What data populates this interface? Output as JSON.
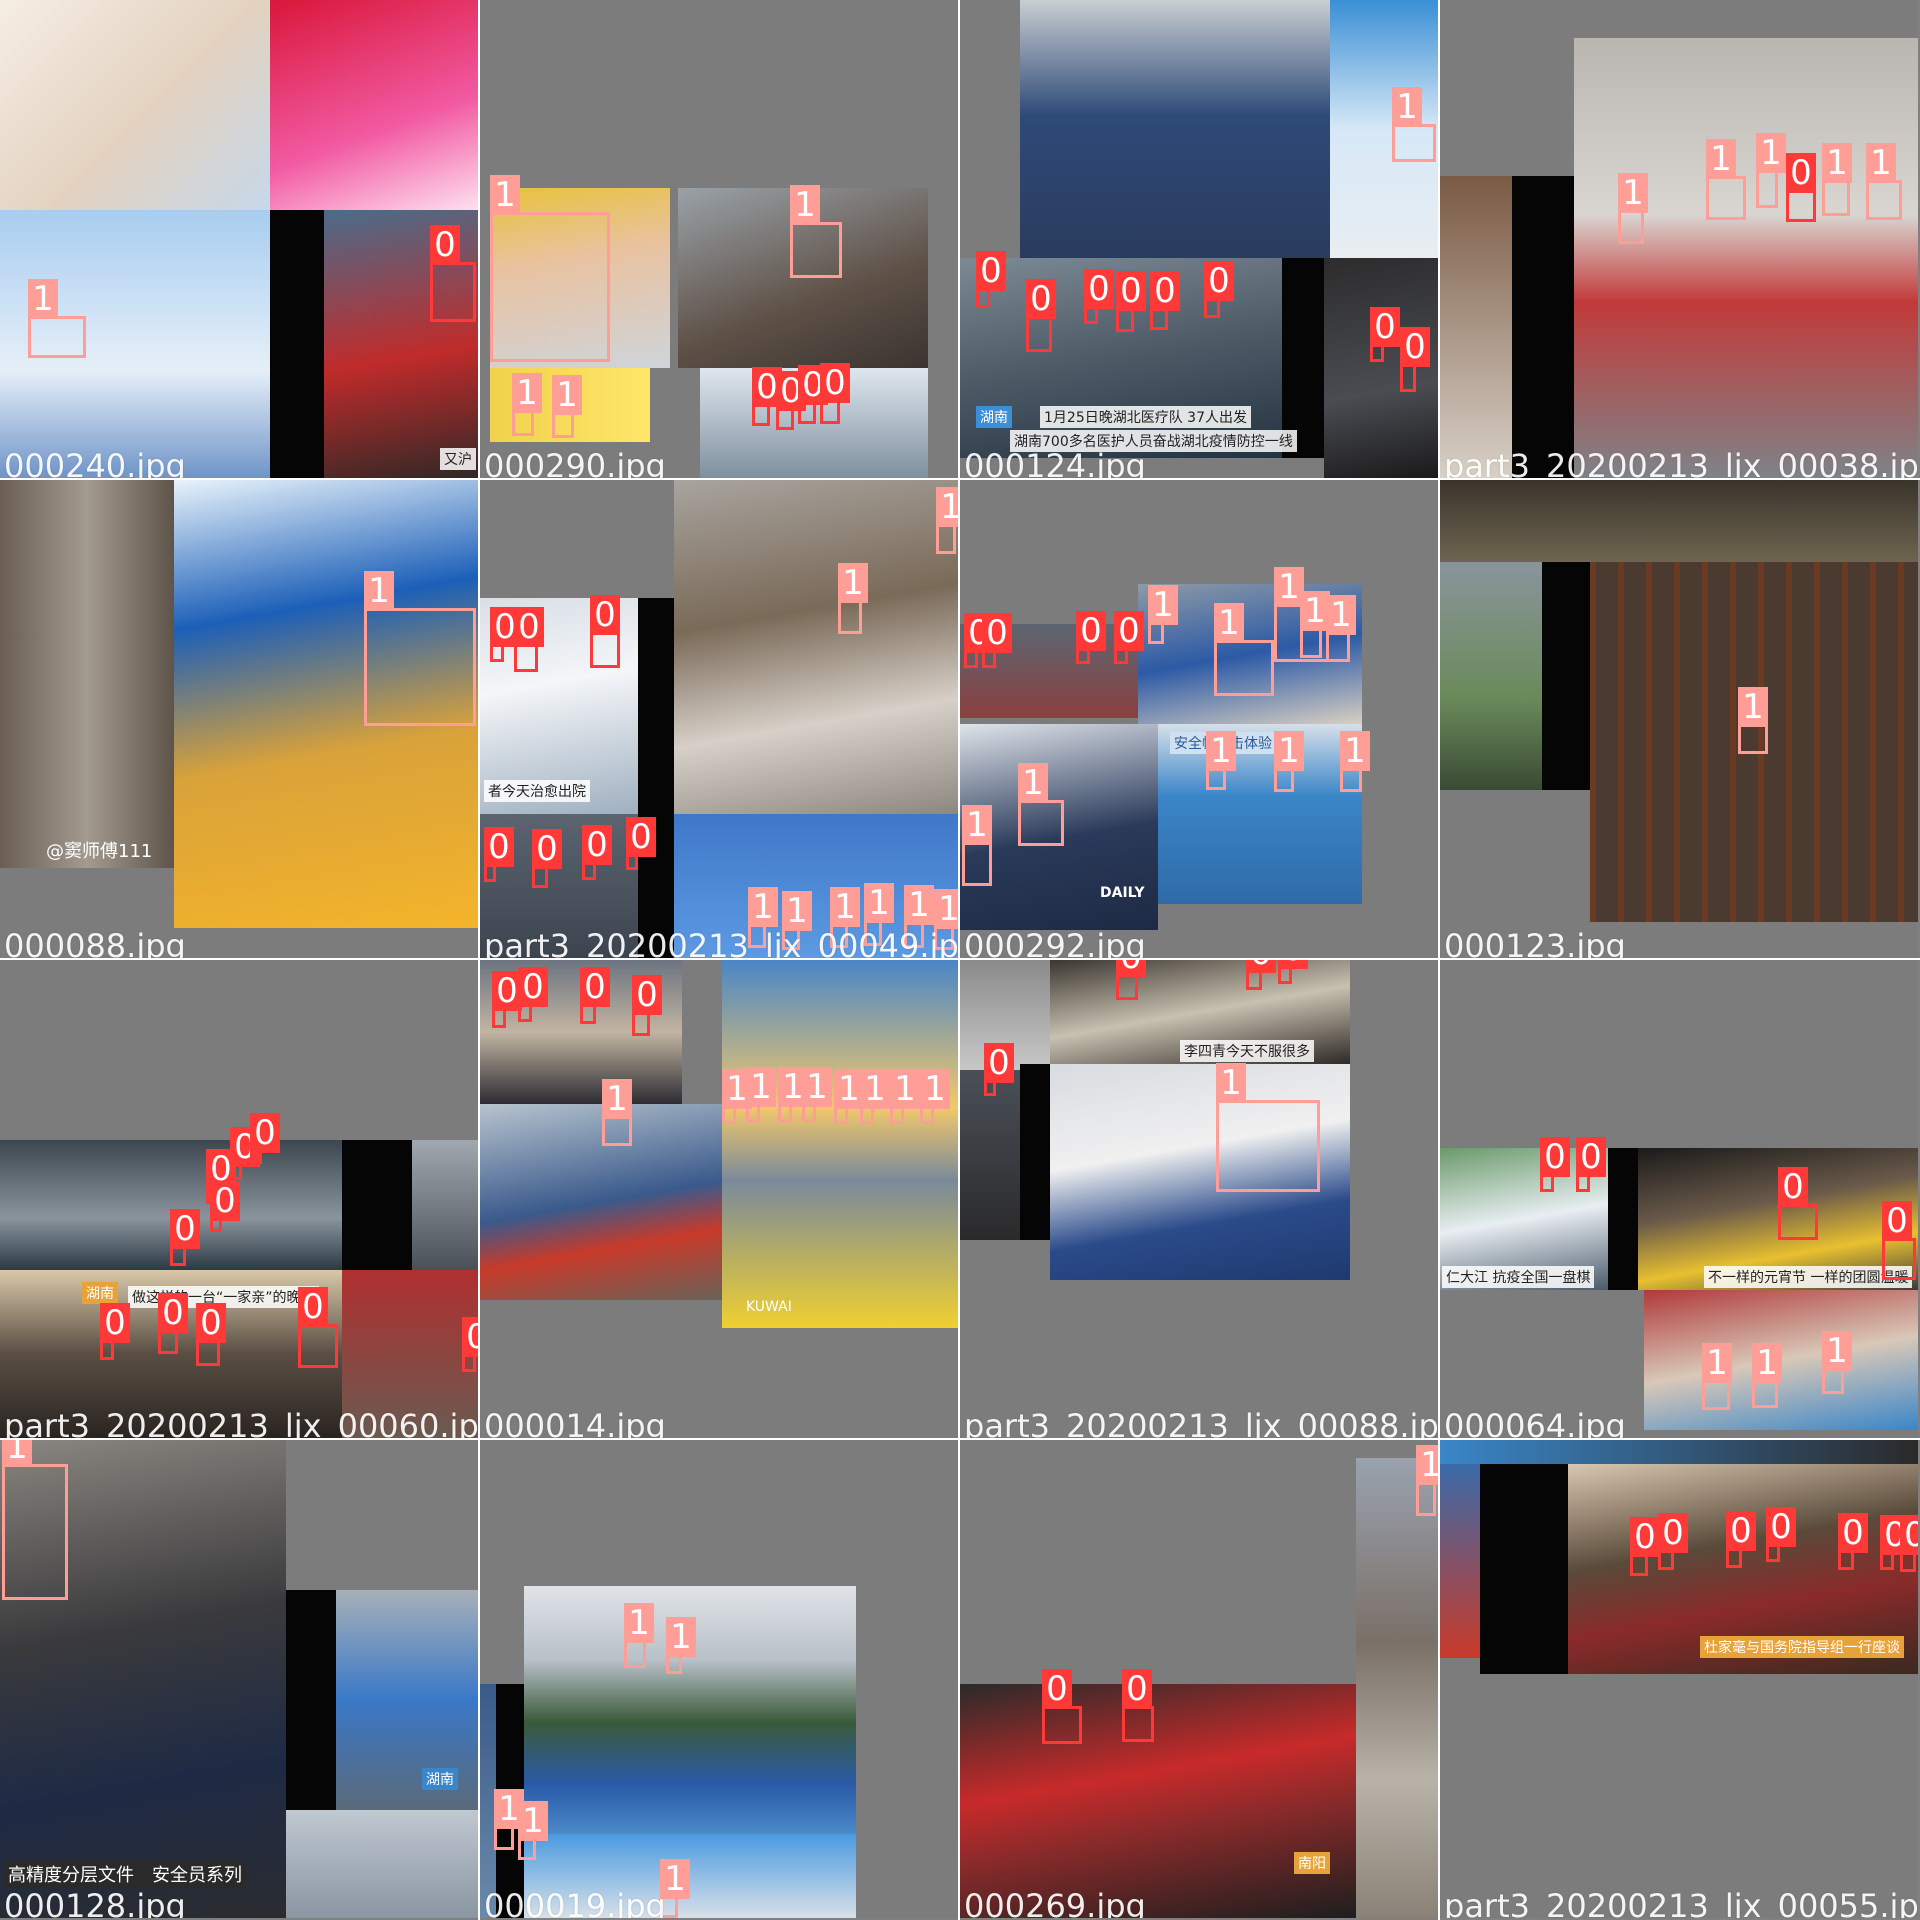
{
  "classes": {
    "0": "0",
    "1": "1"
  },
  "colors": {
    "class_0": "#ff3838",
    "class_1": "#ff9d97",
    "gap": "#808080",
    "separator": "#ffffff"
  },
  "tiles": [
    {
      "filename": "000240.jpg",
      "captions": [
        "又沪"
      ],
      "boxes": [
        {
          "cls": "1"
        },
        {
          "cls": "0"
        }
      ]
    },
    {
      "filename": "000290.jpg",
      "captions": [],
      "boxes": [
        {
          "cls": "1"
        },
        {
          "cls": "1"
        },
        {
          "cls": "1"
        },
        {
          "cls": "1"
        },
        {
          "cls": "0"
        },
        {
          "cls": "0"
        },
        {
          "cls": "0"
        },
        {
          "cls": "0"
        }
      ]
    },
    {
      "filename": "000124.jpg",
      "captions": [
        "1月25日晚湖北医疗队 37人出发",
        "湖南700多名医护人员奋战湖北疫情防控一线",
        "湖南"
      ],
      "boxes": [
        {
          "cls": "1"
        },
        {
          "cls": "0"
        },
        {
          "cls": "0"
        },
        {
          "cls": "0"
        },
        {
          "cls": "0"
        },
        {
          "cls": "0"
        },
        {
          "cls": "0"
        },
        {
          "cls": "0"
        },
        {
          "cls": "0"
        }
      ]
    },
    {
      "filename": "part3_20200213_ljx_00038.jpg",
      "captions": [],
      "boxes": [
        {
          "cls": "1"
        },
        {
          "cls": "1"
        },
        {
          "cls": "1"
        },
        {
          "cls": "0"
        },
        {
          "cls": "1"
        },
        {
          "cls": "1"
        }
      ]
    },
    {
      "filename": "000088.jpg",
      "captions": [
        "@窦师傅111"
      ],
      "boxes": [
        {
          "cls": "1"
        }
      ]
    },
    {
      "filename": "part3_20200213_ljx_00049.jpg",
      "captions": [
        "者今天治愈出院"
      ],
      "boxes": [
        {
          "cls": "0"
        },
        {
          "cls": "0"
        },
        {
          "cls": "0"
        },
        {
          "cls": "0"
        },
        {
          "cls": "0"
        },
        {
          "cls": "0"
        },
        {
          "cls": "0"
        },
        {
          "cls": "1"
        },
        {
          "cls": "1"
        },
        {
          "cls": "1"
        },
        {
          "cls": "1"
        },
        {
          "cls": "1"
        },
        {
          "cls": "1"
        },
        {
          "cls": "1"
        },
        {
          "cls": "1"
        }
      ]
    },
    {
      "filename": "000292.jpg",
      "captions": [
        "安全帽撞击体验",
        "DAILY"
      ],
      "boxes": [
        {
          "cls": "0"
        },
        {
          "cls": "0"
        },
        {
          "cls": "0"
        },
        {
          "cls": "0"
        },
        {
          "cls": "1"
        },
        {
          "cls": "1"
        },
        {
          "cls": "1"
        },
        {
          "cls": "1"
        },
        {
          "cls": "1"
        },
        {
          "cls": "1"
        },
        {
          "cls": "1"
        },
        {
          "cls": "1"
        },
        {
          "cls": "1"
        },
        {
          "cls": "1"
        }
      ]
    },
    {
      "filename": "000123.jpg",
      "captions": [],
      "boxes": [
        {
          "cls": "1"
        }
      ]
    },
    {
      "filename": "part3_20200213_ljx_00060.jpg",
      "captions": [
        "做这样的一台“一家亲”的晚会",
        "湖南"
      ],
      "boxes": [
        {
          "cls": "0"
        },
        {
          "cls": "0"
        },
        {
          "cls": "0"
        },
        {
          "cls": "0"
        },
        {
          "cls": "0"
        },
        {
          "cls": "0"
        },
        {
          "cls": "0"
        },
        {
          "cls": "0"
        },
        {
          "cls": "0"
        },
        {
          "cls": "0"
        }
      ]
    },
    {
      "filename": "000014.jpg",
      "captions": [
        "KUWAI"
      ],
      "boxes": [
        {
          "cls": "0"
        },
        {
          "cls": "0"
        },
        {
          "cls": "0"
        },
        {
          "cls": "0"
        },
        {
          "cls": "1"
        },
        {
          "cls": "1"
        },
        {
          "cls": "1"
        },
        {
          "cls": "1"
        },
        {
          "cls": "1"
        },
        {
          "cls": "1"
        },
        {
          "cls": "1"
        },
        {
          "cls": "1"
        },
        {
          "cls": "1"
        }
      ]
    },
    {
      "filename": "part3_20200213_ljx_00088.jpg",
      "captions": [
        "李四青今天不服很多"
      ],
      "boxes": [
        {
          "cls": "0"
        },
        {
          "cls": "0"
        },
        {
          "cls": "0"
        },
        {
          "cls": "0"
        },
        {
          "cls": "1"
        }
      ]
    },
    {
      "filename": "000064.jpg",
      "captions": [
        "仁大江 抗疫全国一盘棋",
        "不一样的元宵节 一样的团圆温暖"
      ],
      "boxes": [
        {
          "cls": "0"
        },
        {
          "cls": "0"
        },
        {
          "cls": "0"
        },
        {
          "cls": "0"
        },
        {
          "cls": "1"
        },
        {
          "cls": "1"
        },
        {
          "cls": "1"
        }
      ]
    },
    {
      "filename": "000128.jpg",
      "captions": [
        "高精度分层文件　安全员系列",
        "湖南"
      ],
      "boxes": [
        {
          "cls": "1"
        }
      ]
    },
    {
      "filename": "000019.jpg",
      "captions": [],
      "boxes": [
        {
          "cls": "1"
        },
        {
          "cls": "1"
        },
        {
          "cls": "1"
        },
        {
          "cls": "1"
        },
        {
          "cls": "1"
        }
      ]
    },
    {
      "filename": "000269.jpg",
      "captions": [
        "南阳"
      ],
      "boxes": [
        {
          "cls": "0"
        },
        {
          "cls": "0"
        },
        {
          "cls": "1"
        }
      ]
    },
    {
      "filename": "part3_20200213_ljx_00055.jpg",
      "captions": [
        "杜家毫与国务院指导组一行座谈"
      ],
      "boxes": [
        {
          "cls": "0"
        },
        {
          "cls": "0"
        },
        {
          "cls": "0"
        },
        {
          "cls": "0"
        },
        {
          "cls": "0"
        },
        {
          "cls": "0"
        },
        {
          "cls": "0"
        }
      ]
    }
  ]
}
